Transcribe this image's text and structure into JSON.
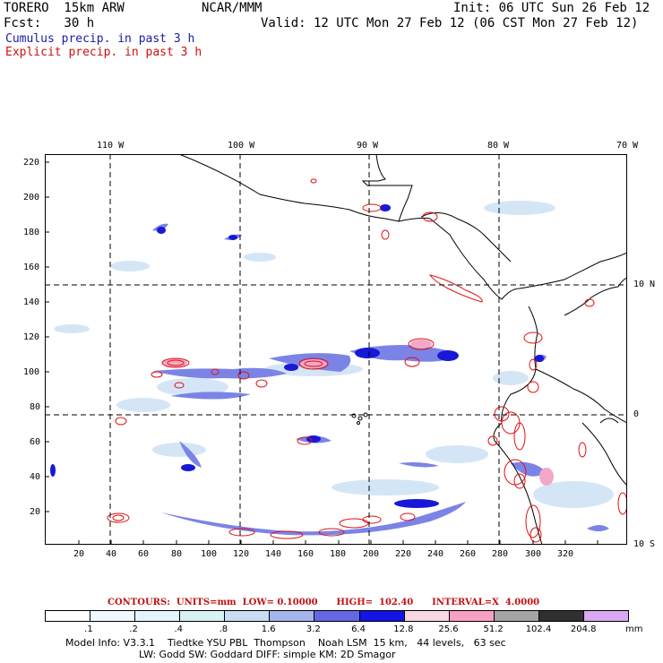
{
  "header": {
    "model": "TORERO  15km ARW",
    "org": "NCAR/MMM",
    "init": "Init: 06 UTC Sun 26 Feb 12",
    "fcst": "Fcst:   30 h",
    "valid": "Valid: 12 UTC Mon 27 Feb 12 (06 CST Mon 27 Feb 12)"
  },
  "legend": {
    "cumulus": "Cumulus precip. in past 3 h",
    "explicit": "Explicit precip. in past 3 h"
  },
  "map": {
    "top_lon_labels": [
      "110 W",
      "100 W",
      "90 W",
      "80 W",
      "70 W"
    ],
    "right_lat_labels": [
      "10 N",
      "0",
      "10 S"
    ],
    "y_ticks": [
      "220",
      "200",
      "180",
      "160",
      "140",
      "120",
      "100",
      "80",
      "60",
      "40",
      "20"
    ],
    "x_ticks": [
      "20",
      "40",
      "60",
      "80",
      "100",
      "120",
      "140",
      "160",
      "180",
      "200",
      "220",
      "240",
      "260",
      "280",
      "300",
      "320"
    ]
  },
  "contours": {
    "label": "CONTOURS:  UNITS=mm  LOW= 0.10000      HIGH=  102.40      INTERVAL=X  4.0000"
  },
  "colorbar": {
    "levels": [
      ".1",
      ".2",
      ".4",
      ".8",
      "1.6",
      "3.2",
      "6.4",
      "12.8",
      "25.6",
      "51.2",
      "102.4",
      "204.8"
    ],
    "unit": "mm",
    "colors": [
      "#ffffff",
      "#eef8fe",
      "#e4f4fc",
      "#d8f2f4",
      "#c8dcf4",
      "#a4b4ee",
      "#6468e4",
      "#1414e8",
      "#f8d8e0",
      "#f8a0c4",
      "#a4a4a4",
      "#303030",
      "#d8a8f0"
    ]
  },
  "footer": {
    "line1": "Model Info: V3.3.1    Tiedtke YSU PBL  Thompson    Noah LSM  15 km,   44 levels,   63 sec",
    "line2": "LW: Godd SW: Goddard DIFF: simple KM: 2D Smagor"
  }
}
